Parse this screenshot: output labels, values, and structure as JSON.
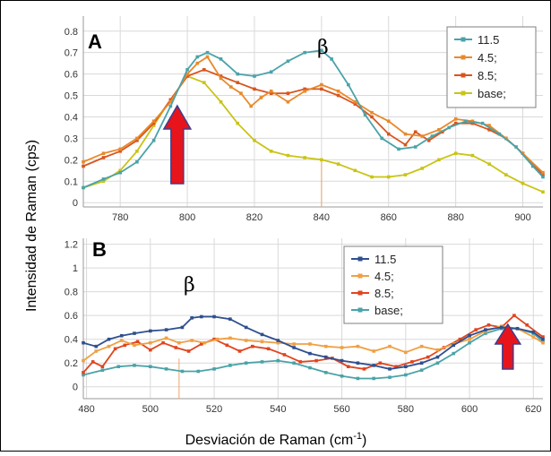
{
  "figure": {
    "ylabel": "Intensidad de Raman (cps)",
    "xlabel_main": "Desviación de Raman (cm",
    "xlabel_sup": "-1",
    "xlabel_tail": ")"
  },
  "chart_data": [
    {
      "type": "line",
      "panel": "A",
      "annotation": "β",
      "xlim": [
        769,
        906
      ],
      "ylim": [
        -0.02,
        0.87
      ],
      "xticks": [
        780,
        800,
        820,
        840,
        860,
        880,
        900
      ],
      "yticks": [
        0,
        0.1,
        0.2,
        0.3,
        0.4,
        0.5,
        0.6,
        0.7,
        0.8
      ],
      "grid": true,
      "legend_position": "top-right",
      "arrow_x": 797,
      "marker_line_x": 840,
      "series": [
        {
          "name": "11.5",
          "color": "#4aa3a8",
          "x": [
            769,
            775,
            780,
            785,
            790,
            795,
            800,
            803,
            806,
            810,
            815,
            820,
            825,
            830,
            835,
            840,
            843,
            848,
            853,
            858,
            863,
            868,
            873,
            878,
            883,
            888,
            893,
            898,
            903,
            906
          ],
          "y": [
            0.07,
            0.11,
            0.14,
            0.19,
            0.29,
            0.45,
            0.62,
            0.68,
            0.7,
            0.67,
            0.6,
            0.59,
            0.61,
            0.66,
            0.7,
            0.71,
            0.67,
            0.55,
            0.41,
            0.3,
            0.25,
            0.26,
            0.31,
            0.35,
            0.38,
            0.37,
            0.32,
            0.26,
            0.17,
            0.12
          ]
        },
        {
          "name": "4.5;",
          "color": "#e8892b",
          "x": [
            769,
            775,
            780,
            785,
            790,
            795,
            800,
            803,
            806,
            810,
            813,
            816,
            819,
            822,
            825,
            830,
            835,
            840,
            845,
            850,
            855,
            860,
            865,
            870,
            875,
            880,
            885,
            890,
            895,
            900,
            906
          ],
          "y": [
            0.19,
            0.23,
            0.25,
            0.3,
            0.38,
            0.47,
            0.6,
            0.65,
            0.68,
            0.58,
            0.54,
            0.51,
            0.45,
            0.49,
            0.52,
            0.47,
            0.52,
            0.55,
            0.52,
            0.47,
            0.42,
            0.38,
            0.32,
            0.31,
            0.34,
            0.39,
            0.38,
            0.36,
            0.3,
            0.23,
            0.14
          ]
        },
        {
          "name": "8.5;",
          "color": "#d9541e",
          "x": [
            769,
            775,
            780,
            785,
            790,
            795,
            800,
            805,
            810,
            815,
            820,
            825,
            830,
            835,
            840,
            845,
            850,
            855,
            860,
            865,
            868,
            872,
            876,
            880,
            885,
            890,
            895,
            900,
            906
          ],
          "y": [
            0.17,
            0.21,
            0.24,
            0.29,
            0.37,
            0.48,
            0.59,
            0.62,
            0.59,
            0.56,
            0.53,
            0.51,
            0.51,
            0.53,
            0.53,
            0.5,
            0.46,
            0.4,
            0.32,
            0.27,
            0.33,
            0.29,
            0.33,
            0.37,
            0.37,
            0.34,
            0.3,
            0.23,
            0.13
          ]
        },
        {
          "name": "base;",
          "color": "#c9c415",
          "x": [
            769,
            775,
            780,
            785,
            790,
            795,
            800,
            805,
            810,
            815,
            820,
            825,
            830,
            835,
            840,
            845,
            850,
            855,
            860,
            865,
            870,
            875,
            880,
            885,
            890,
            895,
            900,
            906
          ],
          "y": [
            0.07,
            0.1,
            0.15,
            0.24,
            0.36,
            0.48,
            0.59,
            0.56,
            0.47,
            0.37,
            0.29,
            0.24,
            0.22,
            0.21,
            0.2,
            0.18,
            0.15,
            0.12,
            0.12,
            0.13,
            0.16,
            0.2,
            0.23,
            0.22,
            0.18,
            0.13,
            0.09,
            0.05
          ]
        }
      ]
    },
    {
      "type": "line",
      "panel": "B",
      "annotation": "β",
      "xlim": [
        479,
        623
      ],
      "ylim": [
        -0.1,
        1.25
      ],
      "xticks": [
        480,
        500,
        520,
        540,
        560,
        580,
        600,
        620
      ],
      "yticks": [
        0,
        0.2,
        0.4,
        0.6,
        0.8,
        1,
        1.2
      ],
      "grid": true,
      "legend_position": "top-right",
      "arrow_x": 612,
      "marker_line_x": 509,
      "series": [
        {
          "name": "11.5",
          "color": "#2f4f8f",
          "x": [
            479,
            483,
            487,
            491,
            495,
            500,
            505,
            510,
            513,
            516,
            520,
            525,
            530,
            535,
            540,
            545,
            550,
            555,
            560,
            565,
            570,
            575,
            580,
            585,
            590,
            595,
            600,
            605,
            610,
            615,
            620,
            623
          ],
          "y": [
            0.37,
            0.34,
            0.4,
            0.43,
            0.45,
            0.47,
            0.48,
            0.5,
            0.58,
            0.59,
            0.59,
            0.57,
            0.5,
            0.44,
            0.39,
            0.33,
            0.28,
            0.25,
            0.22,
            0.2,
            0.18,
            0.15,
            0.17,
            0.2,
            0.25,
            0.35,
            0.43,
            0.48,
            0.5,
            0.49,
            0.46,
            0.4
          ]
        },
        {
          "name": "4.5;",
          "color": "#f0a043",
          "x": [
            479,
            483,
            487,
            491,
            495,
            500,
            505,
            509,
            513,
            517,
            521,
            525,
            530,
            535,
            540,
            545,
            550,
            555,
            560,
            565,
            570,
            575,
            580,
            585,
            590,
            595,
            600,
            605,
            610,
            615,
            620,
            623
          ],
          "y": [
            0.22,
            0.3,
            0.34,
            0.39,
            0.35,
            0.37,
            0.41,
            0.37,
            0.39,
            0.37,
            0.4,
            0.41,
            0.39,
            0.38,
            0.37,
            0.36,
            0.36,
            0.34,
            0.33,
            0.34,
            0.3,
            0.34,
            0.29,
            0.34,
            0.31,
            0.36,
            0.4,
            0.47,
            0.51,
            0.49,
            0.42,
            0.37
          ]
        },
        {
          "name": "8.5;",
          "color": "#e0451f",
          "x": [
            479,
            482,
            485,
            489,
            492,
            496,
            500,
            504,
            508,
            512,
            516,
            520,
            524,
            528,
            532,
            537,
            542,
            547,
            552,
            557,
            562,
            567,
            572,
            577,
            582,
            587,
            592,
            597,
            602,
            606,
            610,
            614,
            618,
            623
          ],
          "y": [
            0.12,
            0.21,
            0.17,
            0.32,
            0.35,
            0.38,
            0.31,
            0.37,
            0.33,
            0.3,
            0.36,
            0.4,
            0.35,
            0.3,
            0.34,
            0.32,
            0.27,
            0.21,
            0.22,
            0.24,
            0.17,
            0.15,
            0.2,
            0.17,
            0.21,
            0.25,
            0.33,
            0.4,
            0.48,
            0.52,
            0.5,
            0.6,
            0.52,
            0.42
          ]
        },
        {
          "name": "base;",
          "color": "#4aa3a8",
          "x": [
            479,
            485,
            490,
            495,
            500,
            505,
            510,
            515,
            520,
            525,
            530,
            535,
            540,
            545,
            550,
            555,
            560,
            565,
            570,
            575,
            580,
            585,
            590,
            595,
            600,
            605,
            610,
            615,
            620,
            623
          ],
          "y": [
            0.1,
            0.14,
            0.17,
            0.18,
            0.17,
            0.15,
            0.13,
            0.13,
            0.15,
            0.18,
            0.2,
            0.21,
            0.22,
            0.2,
            0.16,
            0.12,
            0.09,
            0.07,
            0.07,
            0.08,
            0.1,
            0.14,
            0.2,
            0.28,
            0.37,
            0.45,
            0.49,
            0.49,
            0.45,
            0.38
          ]
        }
      ]
    }
  ]
}
